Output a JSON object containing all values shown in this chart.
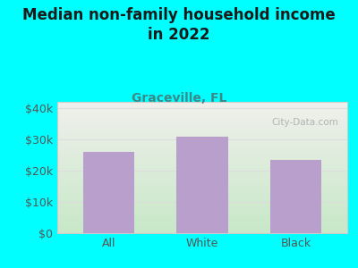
{
  "title": "Median non-family household income\nin 2022",
  "subtitle": "Graceville, FL",
  "categories": [
    "All",
    "White",
    "Black"
  ],
  "values": [
    26000,
    31000,
    23500
  ],
  "bar_color": "#B9A0CC",
  "background_color": "#00FFFF",
  "plot_bg_top_color": "#F0F0EC",
  "plot_bg_bottom_color": "#C8E8C8",
  "title_fontsize": 12,
  "subtitle_fontsize": 10,
  "tick_label_fontsize": 9,
  "ylim": [
    0,
    42000
  ],
  "yticks": [
    0,
    10000,
    20000,
    30000,
    40000
  ],
  "ytick_labels": [
    "$0",
    "$10k",
    "$20k",
    "$30k",
    "$40k"
  ],
  "watermark": "City-Data.com",
  "title_color": "#1a1a1a",
  "subtitle_color": "#3a8a8a",
  "tick_color": "#555555",
  "grid_color": "#dddddd",
  "plot_edge_color": "#cccccc"
}
